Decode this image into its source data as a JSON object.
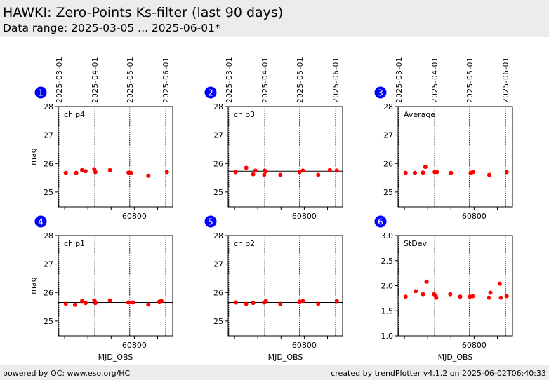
{
  "header": {
    "title": "HAWKI: Zero-Points Ks-filter (last 90 days)",
    "subtitle": "Data range: 2025-03-05 ... 2025-06-01*"
  },
  "footer": {
    "left": "powered by QC: www.eso.org/HC",
    "right": "created by trendPlotter v4.1.2 on 2025-06-02T06:40:33"
  },
  "colors": {
    "point": "#ff0000",
    "badge": "#0000ff"
  },
  "chart_data": [
    {
      "type": "scatter",
      "panel": "1",
      "label": "chip4",
      "ylabel": "mag",
      "xlabel": "",
      "ylim": [
        24.48,
        28
      ],
      "yticks": [
        25,
        26,
        27,
        28
      ],
      "ref": 25.7,
      "x": [
        60741,
        60750,
        60755,
        60758,
        60765.5,
        60766.5,
        60779,
        60795,
        60797,
        60812,
        60828
      ],
      "y": [
        25.67,
        25.67,
        25.77,
        25.73,
        25.8,
        25.7,
        25.77,
        25.68,
        25.67,
        25.57,
        25.7
      ]
    },
    {
      "type": "scatter",
      "panel": "2",
      "label": "chip3",
      "ylabel": "",
      "xlabel": "",
      "ylim": [
        24.48,
        28
      ],
      "yticks": [
        25,
        26,
        27,
        28
      ],
      "ref": 25.73,
      "x": [
        60741,
        60750,
        60756,
        60758,
        60765.5,
        60767,
        60766,
        60779.4,
        60796,
        60798.8,
        60812,
        60822,
        60828
      ],
      "y": [
        25.7,
        25.85,
        25.62,
        25.75,
        25.6,
        25.72,
        25.75,
        25.6,
        25.7,
        25.75,
        25.6,
        25.77,
        25.75
      ]
    },
    {
      "type": "scatter",
      "panel": "3",
      "label": "Average",
      "ylabel": "",
      "xlabel": "",
      "ylim": [
        24.48,
        28
      ],
      "yticks": [
        25,
        26,
        27,
        28
      ],
      "ref": 25.7,
      "x": [
        60741,
        60749,
        60756,
        60758,
        60766,
        60768,
        60780,
        60797,
        60799,
        60813,
        60828
      ],
      "y": [
        25.67,
        25.67,
        25.68,
        25.88,
        25.7,
        25.7,
        25.67,
        25.67,
        25.7,
        25.6,
        25.7
      ]
    },
    {
      "type": "scatter",
      "panel": "4",
      "label": "chip1",
      "ylabel": "mag",
      "xlabel": "MJD_OBS",
      "ylim": [
        24.48,
        28
      ],
      "yticks": [
        25,
        26,
        27,
        28
      ],
      "ref": 25.65,
      "x": [
        60741,
        60749,
        60755,
        60758,
        60765.5,
        60766,
        60766.5,
        60779,
        60795,
        60798.8,
        60812,
        60821.5,
        60823.3
      ],
      "y": [
        25.6,
        25.57,
        25.7,
        25.63,
        25.72,
        25.68,
        25.63,
        25.72,
        25.65,
        25.65,
        25.58,
        25.68,
        25.7
      ]
    },
    {
      "type": "scatter",
      "panel": "5",
      "label": "chip2",
      "ylabel": "",
      "xlabel": "MJD_OBS",
      "ylim": [
        24.48,
        28
      ],
      "yticks": [
        25,
        26,
        27,
        28
      ],
      "ref": 25.65,
      "x": [
        60741,
        60750,
        60756,
        60765.5,
        60767,
        60779.4,
        60796,
        60798.8,
        60812,
        60828
      ],
      "y": [
        25.65,
        25.6,
        25.63,
        25.65,
        25.7,
        25.6,
        25.68,
        25.7,
        25.6,
        25.7
      ]
    },
    {
      "type": "scatter",
      "panel": "6",
      "label": "StDev",
      "ylabel": "",
      "xlabel": "MJD_OBS",
      "ylim": [
        1,
        3
      ],
      "yticks": [
        1.0,
        1.5,
        2.0,
        2.5,
        3.0
      ],
      "ref": null,
      "x": [
        60741,
        60749.7,
        60756,
        60759,
        60765.5,
        60767,
        60767.3,
        60779.4,
        60788,
        60796.4,
        60798.8,
        60812.7,
        60814,
        60822,
        60823,
        60828
      ],
      "y": [
        1.78,
        1.89,
        1.83,
        2.08,
        1.83,
        1.79,
        1.76,
        1.83,
        1.78,
        1.78,
        1.79,
        1.76,
        1.86,
        2.04,
        1.76,
        1.79
      ]
    }
  ],
  "xaxis": {
    "xlim": [
      60734.5,
      60833
    ],
    "tick_label": "60800",
    "tick_value": 60800,
    "minor_ticks": [
      60740,
      60760,
      60780,
      60800,
      60820
    ],
    "date_labels": [
      "2025-03-01",
      "2025-04-01",
      "2025-05-01",
      "2025-06-01"
    ],
    "date_mjd": [
      60735,
      60766,
      60796,
      60827
    ]
  }
}
